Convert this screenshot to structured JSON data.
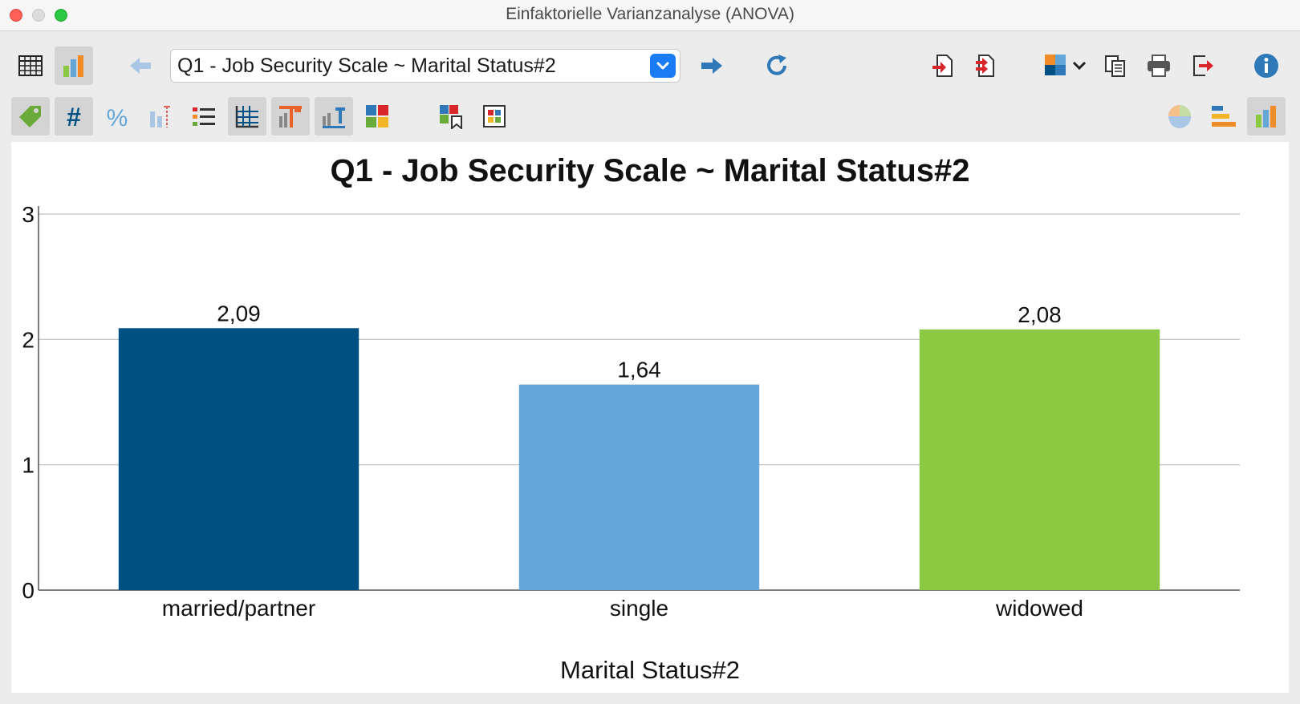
{
  "window": {
    "title": "Einfaktorielle Varianzanalyse (ANOVA)"
  },
  "toolbar": {
    "selector_value": "Q1 - Job Security Scale ~ Marital Status#2",
    "icons_row1": [
      "table-view-icon",
      "chart-view-icon",
      "back-arrow-icon",
      "dropdown-chevron-icon",
      "forward-arrow-icon",
      "refresh-icon",
      "import-icon",
      "export-icon",
      "puzzle-icon",
      "copy-icon",
      "print-icon",
      "exit-icon",
      "info-icon"
    ],
    "icons_row2": [
      "tag-icon",
      "number-icon",
      "percent-icon",
      "error-bar-icon",
      "list-icon",
      "grid-lines-icon",
      "title-chart-icon",
      "axis-title-icon",
      "color-palette-icon",
      "bookmark-chart-icon",
      "frame-chart-icon",
      "pie-chart-icon",
      "horizontal-bar-icon",
      "vertical-bar-icon"
    ]
  },
  "colors": {
    "married": "#005183",
    "single": "#64a6d7",
    "widowed": "#8bc943",
    "accent": "#1a7cf5"
  },
  "chart_data": {
    "type": "bar",
    "title": "Q1 - Job Security Scale ~ Marital Status#2",
    "xlabel": "Marital Status#2",
    "ylabel": "",
    "categories": [
      "married/partner",
      "single",
      "widowed"
    ],
    "values": [
      2.09,
      1.64,
      2.08
    ],
    "value_labels": [
      "2,09",
      "1,64",
      "2,08"
    ],
    "yticks": [
      "0",
      "1",
      "2",
      "3"
    ],
    "ylim": [
      0,
      3
    ],
    "grid": true,
    "legend": "none"
  }
}
